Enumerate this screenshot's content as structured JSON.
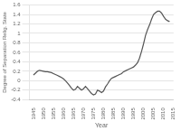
{
  "chart_data": {
    "type": "line",
    "xlabel": "Year",
    "ylabel": "Degree of Separation Relig. State",
    "x": [
      1945,
      1946,
      1947,
      1948,
      1949,
      1950,
      1951,
      1952,
      1953,
      1954,
      1955,
      1956,
      1957,
      1958,
      1959,
      1960,
      1961,
      1962,
      1963,
      1964,
      1965,
      1966,
      1967,
      1968,
      1969,
      1970,
      1971,
      1972,
      1973,
      1974,
      1975,
      1976,
      1977,
      1978,
      1979,
      1980,
      1981,
      1982,
      1983,
      1984,
      1985,
      1986,
      1987,
      1988,
      1989,
      1990,
      1991,
      1992,
      1993,
      1994,
      1995,
      1996,
      1997,
      1998,
      1999,
      2000,
      2001,
      2002,
      2003,
      2004,
      2005,
      2006,
      2007,
      2008,
      2009,
      2010,
      2011,
      2012,
      2013
    ],
    "values": [
      0.12,
      0.16,
      0.2,
      0.22,
      0.21,
      0.2,
      0.19,
      0.19,
      0.18,
      0.17,
      0.15,
      0.13,
      0.11,
      0.09,
      0.07,
      0.04,
      0.0,
      -0.05,
      -0.1,
      -0.16,
      -0.2,
      -0.18,
      -0.12,
      -0.16,
      -0.2,
      -0.17,
      -0.12,
      -0.17,
      -0.22,
      -0.27,
      -0.3,
      -0.28,
      -0.2,
      -0.22,
      -0.25,
      -0.22,
      -0.13,
      -0.07,
      0.0,
      0.05,
      0.07,
      0.09,
      0.11,
      0.13,
      0.15,
      0.19,
      0.21,
      0.23,
      0.25,
      0.27,
      0.29,
      0.33,
      0.38,
      0.48,
      0.62,
      0.78,
      0.96,
      1.08,
      1.18,
      1.3,
      1.4,
      1.44,
      1.47,
      1.47,
      1.43,
      1.36,
      1.3,
      1.27,
      1.25
    ],
    "color": "#555555",
    "xlim": [
      1943,
      2015
    ],
    "ylim": [
      -0.4,
      1.6
    ],
    "xticks": [
      1945,
      1950,
      1955,
      1960,
      1965,
      1970,
      1975,
      1980,
      1985,
      1990,
      1995,
      2000,
      2005,
      2010,
      2015
    ],
    "yticks": [
      -0.4,
      -0.2,
      0.0,
      0.2,
      0.4,
      0.6,
      0.8,
      1.0,
      1.2,
      1.4,
      1.6
    ],
    "grid": "y"
  }
}
